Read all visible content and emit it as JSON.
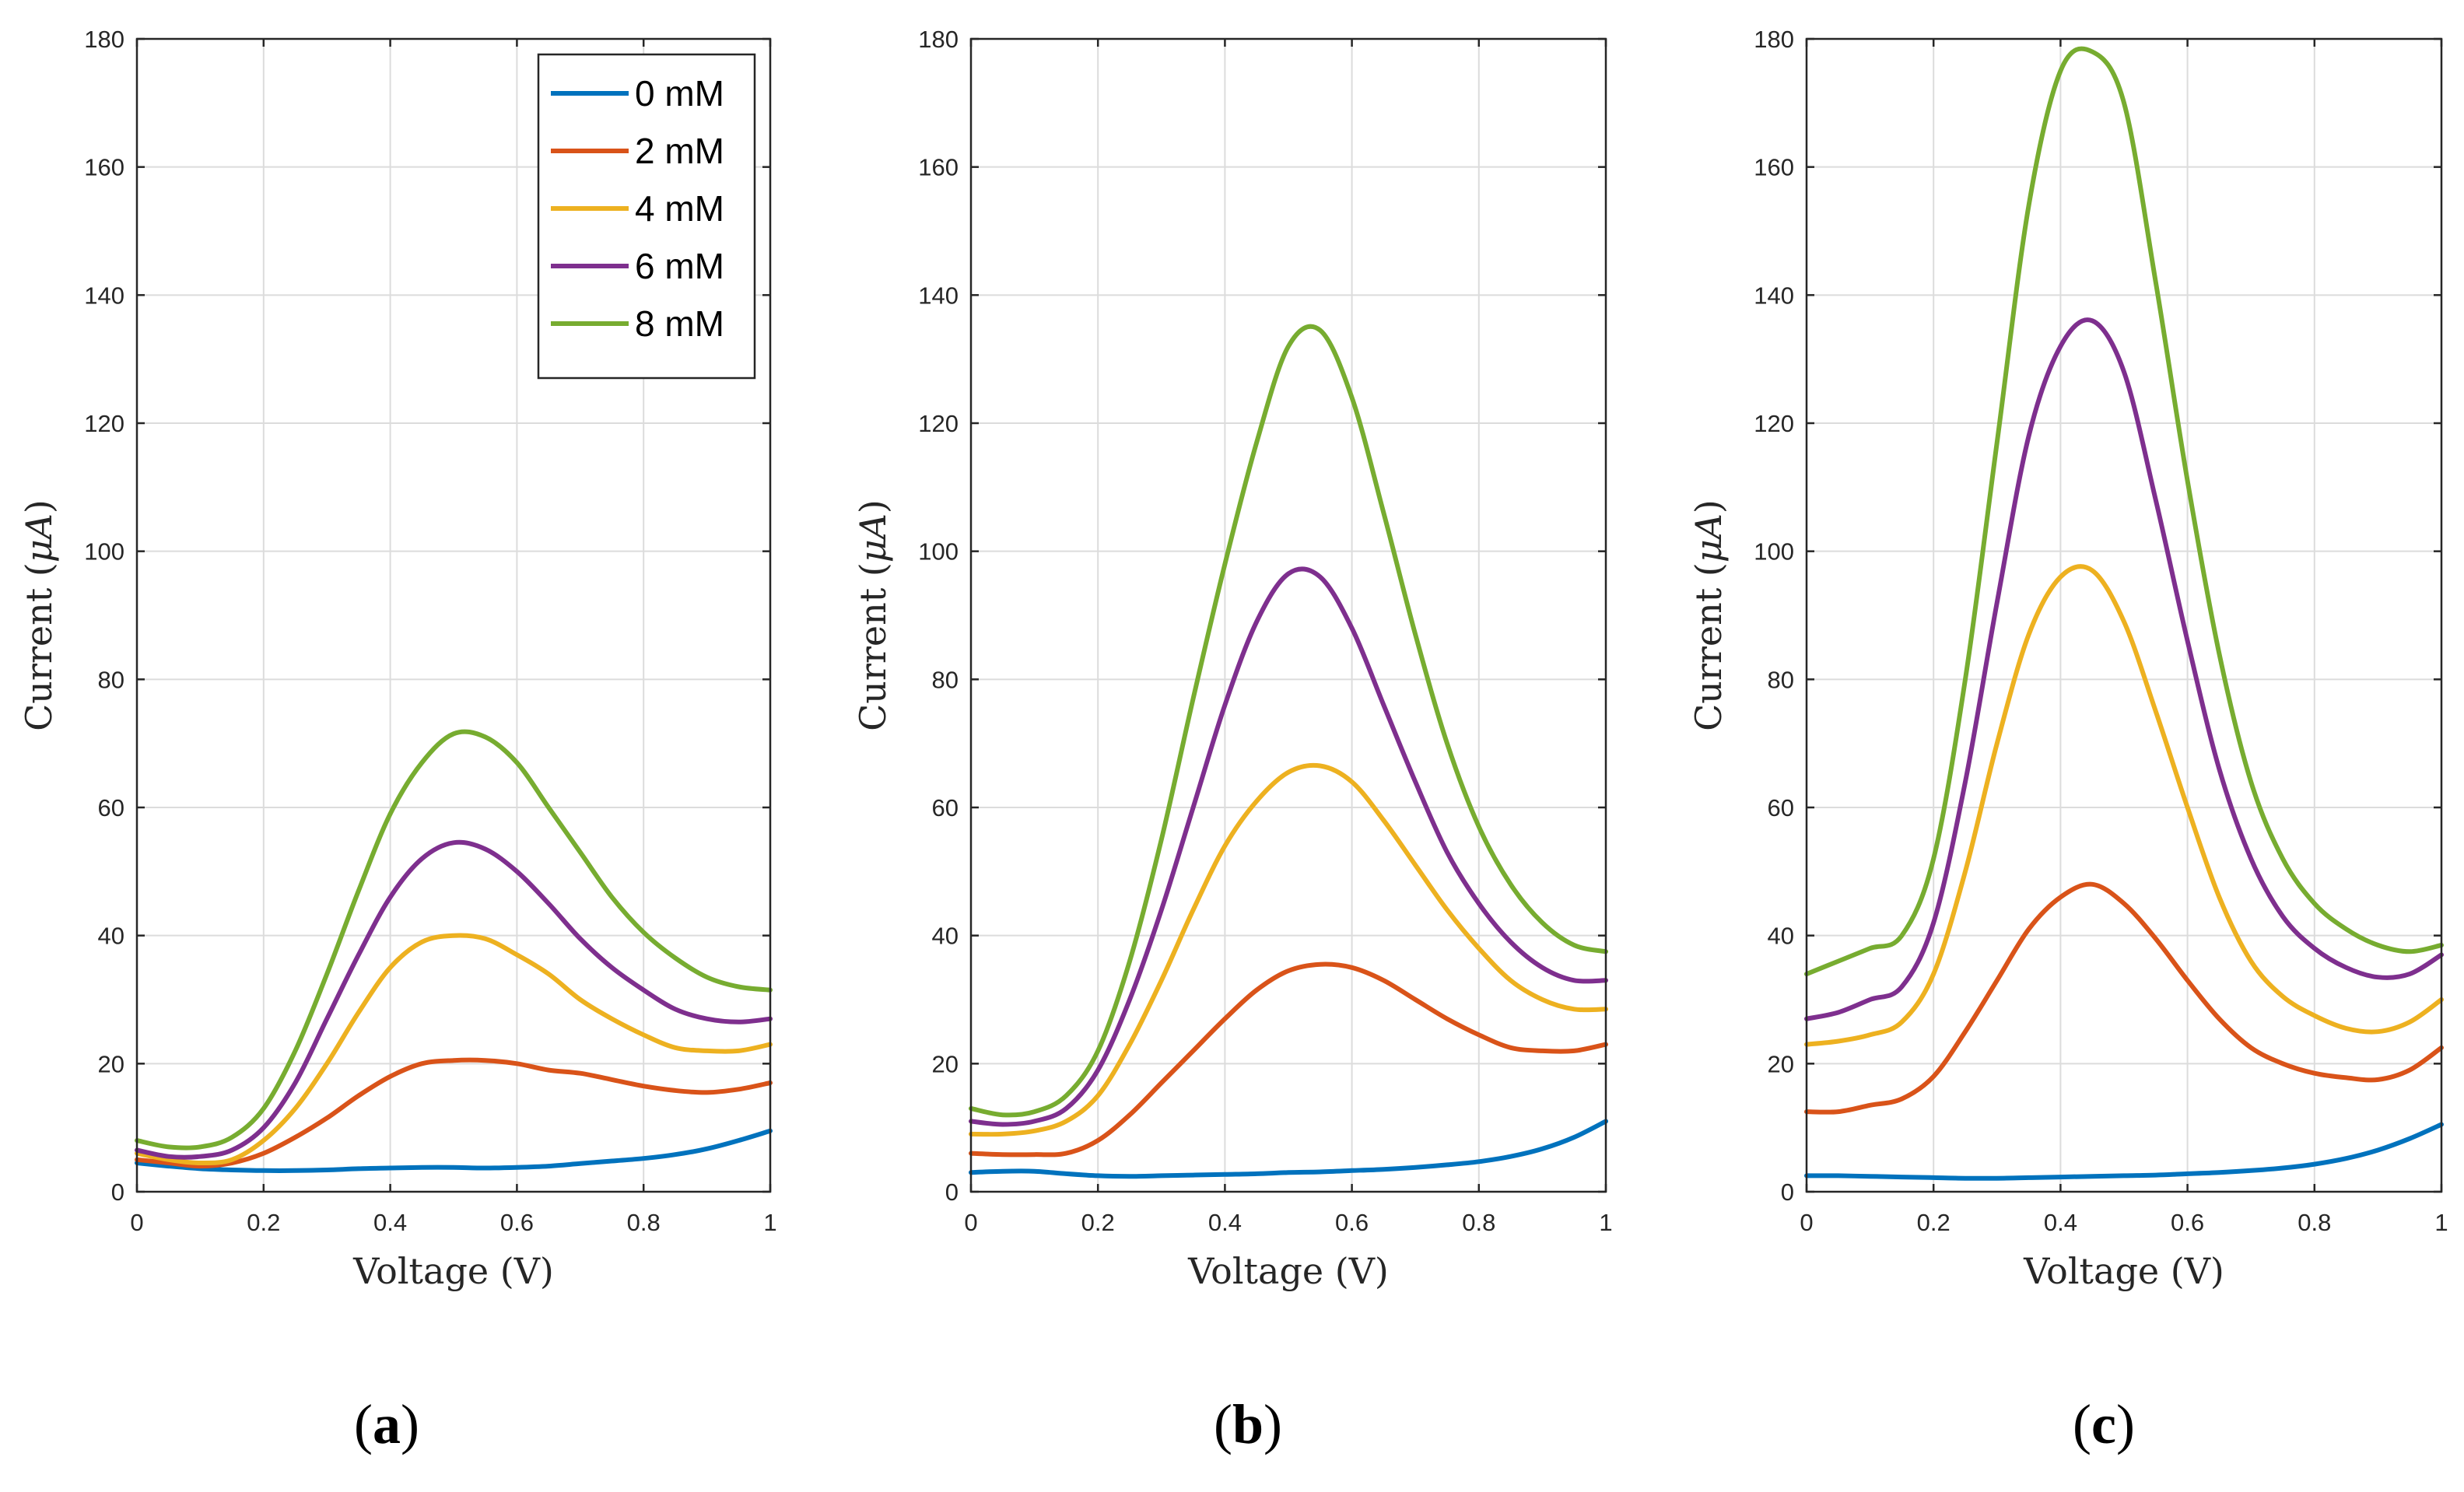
{
  "chart_data": [
    {
      "type": "line",
      "panel_label": "a",
      "xlabel": "Voltage (V)",
      "ylabel_text": "Current (",
      "ylabel_unit": "μA",
      "ylabel_close": ")",
      "xlim": [
        0,
        1
      ],
      "ylim": [
        0,
        180
      ],
      "xticks": [
        0,
        0.2,
        0.4,
        0.6,
        0.8,
        1
      ],
      "xtick_labels": [
        "0",
        "0.2",
        "0.4",
        "0.6",
        "0.8",
        "1"
      ],
      "yticks": [
        0,
        20,
        40,
        60,
        80,
        100,
        120,
        140,
        160,
        180
      ],
      "ytick_labels": [
        "0",
        "20",
        "40",
        "60",
        "80",
        "100",
        "120",
        "140",
        "160",
        "180"
      ],
      "grid": true,
      "legend_position": "top-right",
      "x": [
        0,
        0.05,
        0.1,
        0.15,
        0.2,
        0.25,
        0.3,
        0.35,
        0.4,
        0.45,
        0.5,
        0.55,
        0.6,
        0.65,
        0.7,
        0.75,
        0.8,
        0.85,
        0.9,
        0.95,
        1.0
      ],
      "series": [
        {
          "name": "0 mM",
          "color": "#0072BD",
          "values": [
            4.5,
            4.0,
            3.6,
            3.4,
            3.3,
            3.3,
            3.4,
            3.6,
            3.7,
            3.8,
            3.8,
            3.7,
            3.8,
            4.0,
            4.4,
            4.8,
            5.2,
            5.8,
            6.7,
            8.0,
            9.5
          ]
        },
        {
          "name": "2 mM",
          "color": "#D95319",
          "values": [
            5.0,
            4.5,
            4.0,
            4.5,
            6.0,
            8.5,
            11.5,
            15.0,
            18.0,
            20.0,
            20.5,
            20.5,
            20.0,
            19.0,
            18.5,
            17.5,
            16.5,
            15.8,
            15.5,
            16.0,
            17.0
          ]
        },
        {
          "name": "4 mM",
          "color": "#EDB120",
          "values": [
            6.0,
            5.0,
            4.5,
            5.0,
            8.0,
            13.0,
            20.0,
            28.0,
            35.0,
            39.0,
            40.0,
            39.5,
            37.0,
            34.0,
            30.0,
            27.0,
            24.5,
            22.5,
            22.0,
            22.0,
            23.0
          ]
        },
        {
          "name": "6 mM",
          "color": "#7E2F8E",
          "values": [
            6.5,
            5.5,
            5.5,
            6.5,
            10.0,
            17.0,
            27.0,
            37.0,
            46.0,
            52.0,
            54.5,
            53.5,
            50.0,
            45.0,
            39.5,
            35.0,
            31.5,
            28.5,
            27.0,
            26.5,
            27.0
          ]
        },
        {
          "name": "8 mM",
          "color": "#77AC30",
          "values": [
            8.0,
            7.0,
            7.0,
            8.5,
            13.0,
            22.0,
            34.0,
            47.0,
            59.0,
            67.0,
            71.5,
            71.0,
            67.0,
            60.0,
            53.0,
            46.0,
            40.5,
            36.5,
            33.5,
            32.0,
            31.5
          ]
        }
      ]
    },
    {
      "type": "line",
      "panel_label": "b",
      "xlabel": "Voltage (V)",
      "ylabel_text": "Current (",
      "ylabel_unit": "μA",
      "ylabel_close": ")",
      "xlim": [
        0,
        1
      ],
      "ylim": [
        0,
        180
      ],
      "xticks": [
        0,
        0.2,
        0.4,
        0.6,
        0.8,
        1
      ],
      "xtick_labels": [
        "0",
        "0.2",
        "0.4",
        "0.6",
        "0.8",
        "1"
      ],
      "yticks": [
        0,
        20,
        40,
        60,
        80,
        100,
        120,
        140,
        160,
        180
      ],
      "ytick_labels": [
        "0",
        "20",
        "40",
        "60",
        "80",
        "100",
        "120",
        "140",
        "160",
        "180"
      ],
      "grid": true,
      "x": [
        0,
        0.05,
        0.1,
        0.15,
        0.2,
        0.25,
        0.3,
        0.35,
        0.4,
        0.45,
        0.5,
        0.55,
        0.6,
        0.65,
        0.7,
        0.75,
        0.8,
        0.85,
        0.9,
        0.95,
        1.0
      ],
      "series": [
        {
          "name": "0 mM",
          "color": "#0072BD",
          "values": [
            3.0,
            3.2,
            3.2,
            2.8,
            2.5,
            2.4,
            2.5,
            2.6,
            2.7,
            2.8,
            3.0,
            3.1,
            3.3,
            3.5,
            3.8,
            4.2,
            4.7,
            5.5,
            6.7,
            8.5,
            11.0
          ]
        },
        {
          "name": "2 mM",
          "color": "#D95319",
          "values": [
            6.0,
            5.8,
            5.8,
            6.0,
            8.0,
            12.0,
            17.0,
            22.0,
            27.0,
            31.5,
            34.5,
            35.5,
            35.0,
            33.0,
            30.0,
            27.0,
            24.5,
            22.5,
            22.0,
            22.0,
            23.0
          ]
        },
        {
          "name": "4 mM",
          "color": "#EDB120",
          "values": [
            9.0,
            9.0,
            9.5,
            11.0,
            15.0,
            23.0,
            33.0,
            44.0,
            54.0,
            61.0,
            65.5,
            66.5,
            64.0,
            58.0,
            51.0,
            44.0,
            38.0,
            33.0,
            30.0,
            28.5,
            28.5
          ]
        },
        {
          "name": "6 mM",
          "color": "#7E2F8E",
          "values": [
            11.0,
            10.5,
            11.0,
            13.0,
            19.0,
            30.0,
            44.0,
            60.0,
            76.0,
            89.0,
            96.5,
            96.0,
            88.0,
            76.0,
            64.0,
            53.0,
            45.0,
            39.0,
            35.0,
            33.0,
            33.0
          ]
        },
        {
          "name": "8 mM",
          "color": "#77AC30",
          "values": [
            13.0,
            12.0,
            12.5,
            15.0,
            22.0,
            36.0,
            55.0,
            77.0,
            98.0,
            117.0,
            132.0,
            134.5,
            124.0,
            106.0,
            87.0,
            70.0,
            57.0,
            48.0,
            42.0,
            38.5,
            37.5
          ]
        }
      ]
    },
    {
      "type": "line",
      "panel_label": "c",
      "xlabel": "Voltage (V)",
      "ylabel_text": "Current (",
      "ylabel_unit": "μA",
      "ylabel_close": ")",
      "xlim": [
        0,
        1
      ],
      "ylim": [
        0,
        180
      ],
      "xticks": [
        0,
        0.2,
        0.4,
        0.6,
        0.8,
        1
      ],
      "xtick_labels": [
        "0",
        "0.2",
        "0.4",
        "0.6",
        "0.8",
        "1"
      ],
      "yticks": [
        0,
        20,
        40,
        60,
        80,
        100,
        120,
        140,
        160,
        180
      ],
      "ytick_labels": [
        "0",
        "20",
        "40",
        "60",
        "80",
        "100",
        "120",
        "140",
        "160",
        "180"
      ],
      "grid": true,
      "x": [
        0,
        0.05,
        0.1,
        0.15,
        0.2,
        0.25,
        0.3,
        0.35,
        0.4,
        0.45,
        0.5,
        0.55,
        0.6,
        0.65,
        0.7,
        0.75,
        0.8,
        0.85,
        0.9,
        0.95,
        1.0
      ],
      "series": [
        {
          "name": "0 mM",
          "color": "#0072BD",
          "values": [
            2.5,
            2.5,
            2.4,
            2.3,
            2.2,
            2.1,
            2.1,
            2.2,
            2.3,
            2.4,
            2.5,
            2.6,
            2.8,
            3.0,
            3.3,
            3.7,
            4.3,
            5.2,
            6.5,
            8.3,
            10.5
          ]
        },
        {
          "name": "2 mM",
          "color": "#D95319",
          "values": [
            12.5,
            12.5,
            13.5,
            14.5,
            18.0,
            25.0,
            33.0,
            41.0,
            46.0,
            48.0,
            45.0,
            39.5,
            33.0,
            27.0,
            22.5,
            20.0,
            18.5,
            17.8,
            17.5,
            19.0,
            22.5
          ]
        },
        {
          "name": "4 mM",
          "color": "#EDB120",
          "values": [
            23.0,
            23.5,
            24.5,
            26.5,
            34.0,
            50.0,
            70.0,
            87.0,
            96.0,
            97.0,
            89.0,
            75.0,
            60.0,
            46.0,
            36.0,
            30.5,
            27.5,
            25.5,
            25.0,
            26.5,
            30.0
          ]
        },
        {
          "name": "6 mM",
          "color": "#7E2F8E",
          "values": [
            27.0,
            28.0,
            30.0,
            32.0,
            42.0,
            64.0,
            92.0,
            118.0,
            132.0,
            136.0,
            128.0,
            108.0,
            86.0,
            66.0,
            52.0,
            43.0,
            38.0,
            35.0,
            33.5,
            34.0,
            37.0
          ]
        },
        {
          "name": "8 mM",
          "color": "#77AC30",
          "values": [
            34.0,
            36.0,
            38.0,
            40.0,
            52.0,
            80.0,
            117.0,
            154.0,
            175.0,
            178.0,
            170.0,
            142.0,
            111.0,
            84.0,
            64.0,
            52.0,
            45.0,
            41.0,
            38.5,
            37.5,
            38.5
          ]
        }
      ]
    }
  ]
}
